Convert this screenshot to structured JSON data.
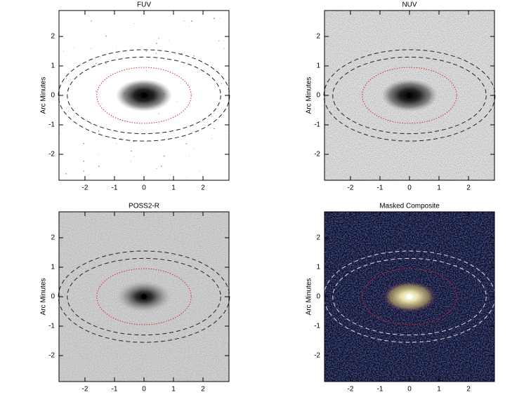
{
  "chart_data": [
    {
      "type": "image",
      "title": "FUV",
      "ylabel": "Arc Minutes",
      "xlim": [
        -2.88,
        2.88
      ],
      "ylim": [
        -2.88,
        2.88
      ],
      "xticks": [
        -2,
        -1,
        0,
        1,
        2
      ],
      "yticks": [
        -2,
        -1,
        0,
        1,
        2
      ]
    },
    {
      "type": "image",
      "title": "NUV",
      "ylabel": "Arc Minutes",
      "xlim": [
        -2.88,
        2.88
      ],
      "ylim": [
        -2.88,
        2.88
      ],
      "xticks": [
        -2,
        -1,
        0,
        1,
        2
      ],
      "yticks": [
        -2,
        -1,
        0,
        1,
        2
      ]
    },
    {
      "type": "image",
      "title": "POSS2-R",
      "ylabel": "Arc Minutes",
      "xlim": [
        -2.88,
        2.88
      ],
      "ylim": [
        -2.88,
        2.88
      ],
      "xticks": [
        -2,
        -1,
        0,
        1,
        2
      ],
      "yticks": [
        -2,
        -1,
        0,
        1,
        2
      ]
    },
    {
      "type": "image",
      "title": "Masked Composite",
      "ylabel": "Arc Minutes",
      "xlim": [
        -2.88,
        2.88
      ],
      "ylim": [
        -2.88,
        2.88
      ],
      "xticks": [
        -2,
        -1,
        0,
        1,
        2
      ],
      "yticks": [
        -2,
        -1,
        0,
        1,
        2
      ]
    }
  ]
}
